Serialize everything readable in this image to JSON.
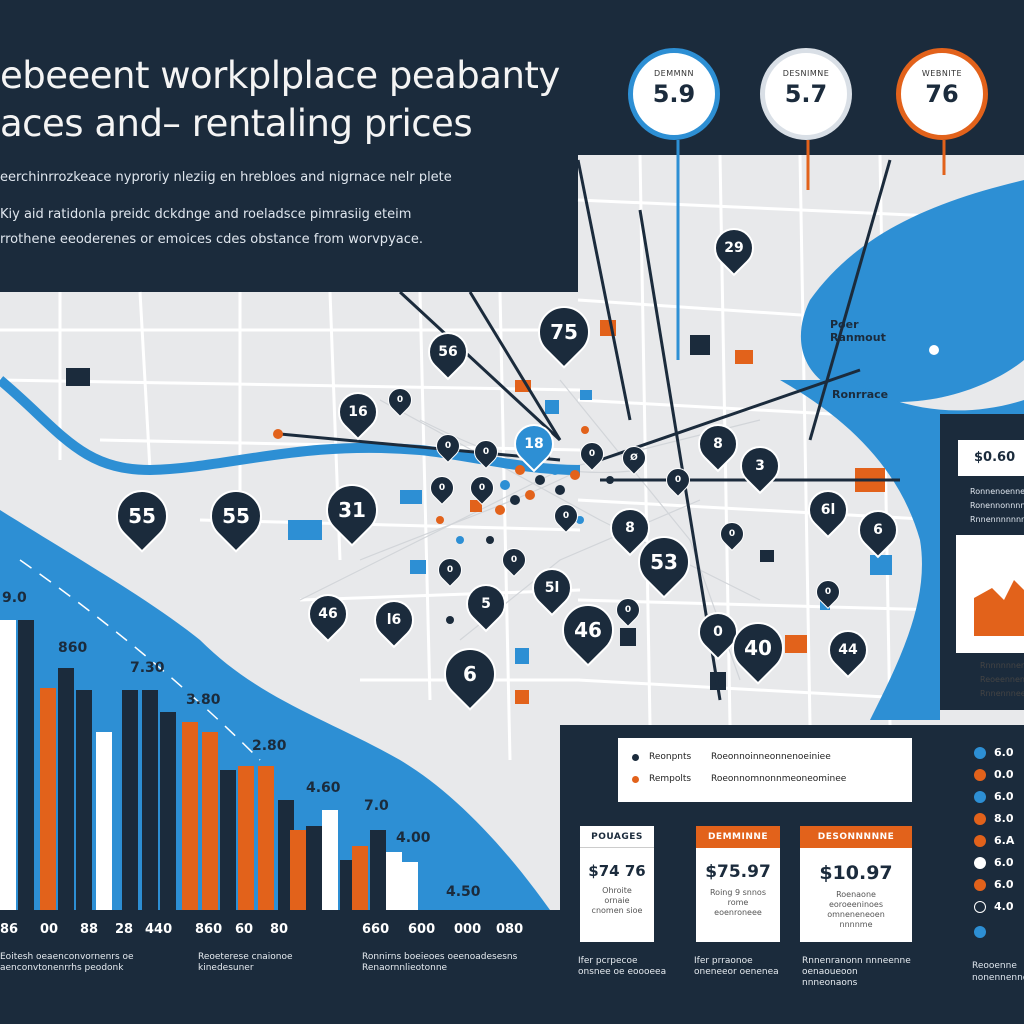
{
  "header": {
    "title_line1": "ebeeent workplplace peabanty",
    "title_line2": "aces and– rentaling prices",
    "subtitle1": "eerchinrrozkeace nyproriy nleziig en hrebloes and nigrnace nelr plete",
    "subtitle2": "Kiy aid ratidonla preidc dckdnge and roeladsce pimrasiig eteim",
    "subtitle3": "rrothene eeoderenes or emoices cdes obstance from worvpyace."
  },
  "gauges": [
    {
      "label": "DEMMNN",
      "value": "5.9",
      "ring": "#2d8fd4"
    },
    {
      "label": "DESNIMNE",
      "value": "5.7",
      "ring": "#d9dfe6"
    },
    {
      "label": "WEBNITE",
      "value": "76",
      "ring": "#e2621b"
    }
  ],
  "map_labels": {
    "district": "Poer Ranmout",
    "district_line1": "Poer",
    "district_line2": "Ranmout",
    "river_label": "Ronrrace"
  },
  "pins": [
    "29",
    "75",
    "56",
    "16",
    "0",
    "18",
    "8",
    "0",
    "0",
    "0",
    "0",
    "0",
    "55",
    "55",
    "31",
    "0",
    "0",
    "0",
    "0",
    "0",
    "8",
    "53",
    "6l",
    "6",
    "3",
    "0",
    "5",
    "5l",
    "46",
    "0",
    "46",
    "l6",
    "0",
    "6",
    "40",
    "44",
    "Ø"
  ],
  "chart": {
    "y_labels": [
      "9.0",
      "860",
      "7.30",
      "3.80",
      "2.80",
      "4.60",
      "7.0",
      "4.00",
      "4.50"
    ],
    "x_ticks": [
      "86",
      "00",
      "88",
      "28",
      "440",
      "860",
      "60",
      "80",
      "660",
      "600",
      "000",
      "080"
    ]
  },
  "footer_notes": [
    "Eoitesh oeaenconvornenrs oe aenconvtonenrrhs peodonk",
    "Reoeterese cnaionoe kinedesuner",
    "Ronnirns boeieoes oeenoadesesns Renaornnlieotonne"
  ],
  "legend": {
    "items": [
      {
        "key": "Reonpnts",
        "desc": "Roeonnoinneonnenoeiniee",
        "color": "#1b2b3c"
      },
      {
        "key": "Rempolts",
        "desc": "Roeonnomnonnmeoneominee",
        "color": "#e2621b"
      }
    ]
  },
  "price_cards": [
    {
      "head": "POUAGES",
      "price": "$74 76",
      "note": "Ohroite ornaie cnomen sioe",
      "head_style": "light"
    },
    {
      "head": "DEMMINNE",
      "price": "$75.97",
      "note": "Roing 9 snnos rome eoenroneee",
      "head_style": "orange"
    },
    {
      "head": "DESONNNNNE",
      "price": "$10.97",
      "note": "Roenaone eoroeeninoes omneneneoen nnnnme",
      "head_style": "orange"
    }
  ],
  "card_footers": [
    "Ifer pcrpecoe onsnee oe eoooeea",
    "Ifer prraonoe oneneeor oenenea",
    "Rnnenranonn nnneenne oenaoueoon nnneonaons"
  ],
  "right_panel": {
    "price": "$0.60",
    "text": [
      "Ronnenoennennnoe",
      "Ronennonnnnnnnnoe",
      "Rnnennnnnnnnnnee"
    ],
    "mini_chart_text": [
      "Rnnnnnnenne",
      "Reoeennenennne",
      "Rnnennneene"
    ],
    "rows": [
      {
        "label": "6.0",
        "color": "#2d8fd4"
      },
      {
        "label": "0.0",
        "color": "#e2621b"
      },
      {
        "label": "6.0",
        "color": "#2d8fd4"
      },
      {
        "label": "8.0",
        "color": "#e2621b"
      },
      {
        "label": "6.A",
        "color": "#e2621b"
      },
      {
        "label": "6.0",
        "color": "#ffffff"
      },
      {
        "label": "6.0",
        "color": "#e2621b"
      },
      {
        "label": "4.0",
        "color": "#1b2b3c"
      },
      {
        "label": "",
        "color": "#2d8fd4"
      }
    ],
    "bottom_text": "Reooenne nonennennenone"
  },
  "colors": {
    "navy": "#1b2b3c",
    "blue": "#2d8fd4",
    "orange": "#e2621b",
    "map": "#e8e9eb",
    "roads": "#ffffff"
  }
}
